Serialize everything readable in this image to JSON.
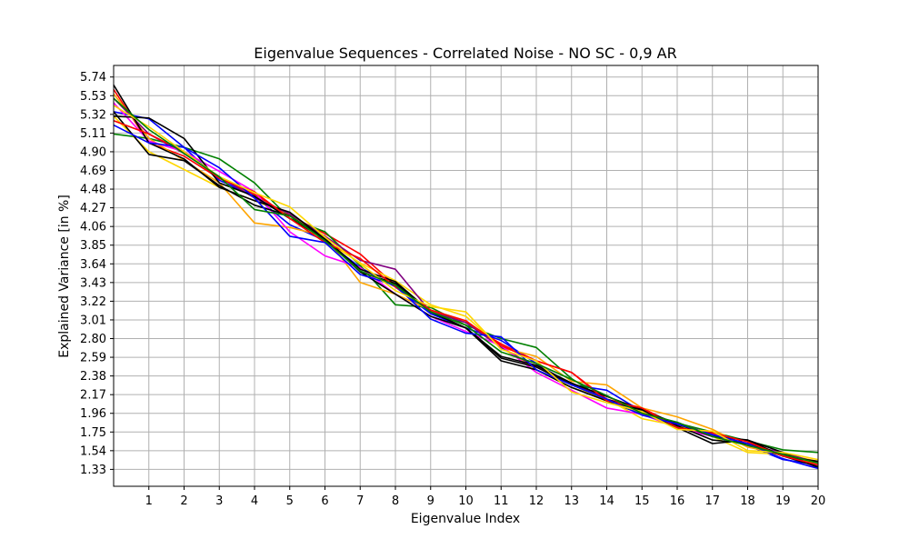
{
  "chart_data": {
    "type": "line",
    "title": "Eigenvalue Sequences - Correlated Noise - NO SC - 0,9 AR",
    "xlabel": "Eigenvalue Index",
    "ylabel": "Explained Variance [in %]",
    "xlim": [
      0,
      20
    ],
    "ylim": [
      1.14,
      5.87
    ],
    "xticks": [
      1,
      2,
      3,
      4,
      5,
      6,
      7,
      8,
      9,
      10,
      11,
      12,
      13,
      14,
      15,
      16,
      17,
      18,
      19,
      20
    ],
    "yticks": [
      5.74,
      5.53,
      5.32,
      5.11,
      4.9,
      4.69,
      4.48,
      4.27,
      4.06,
      3.85,
      3.64,
      3.43,
      3.22,
      3.01,
      2.8,
      2.59,
      2.38,
      2.17,
      1.96,
      1.75,
      1.54,
      1.33
    ],
    "ytick_labels": [
      "5.74",
      "5.53",
      "5.32",
      "5.11",
      "4.90",
      "4.69",
      "4.48",
      "4.27",
      "4.06",
      "3.85",
      "3.64",
      "3.43",
      "3.22",
      "3.01",
      "2.80",
      "2.59",
      "2.38",
      "2.17",
      "1.96",
      "1.75",
      "1.54",
      "1.33"
    ],
    "grid": true,
    "x": [
      0,
      1,
      2,
      3,
      4,
      5,
      6,
      7,
      8,
      9,
      10,
      11,
      12,
      13,
      14,
      15,
      16,
      17,
      18,
      19,
      20
    ],
    "series": [
      {
        "color": "#ff0000",
        "values": [
          5.6,
          5.0,
          4.85,
          4.6,
          4.42,
          4.18,
          3.98,
          3.75,
          3.4,
          3.12,
          2.98,
          2.74,
          2.55,
          2.42,
          2.12,
          2.02,
          1.82,
          1.72,
          1.62,
          1.48,
          1.4
        ]
      },
      {
        "color": "#0000ff",
        "values": [
          5.35,
          5.27,
          4.95,
          4.58,
          4.4,
          4.08,
          3.9,
          3.6,
          3.38,
          3.08,
          2.92,
          2.78,
          2.52,
          2.28,
          2.22,
          1.98,
          1.84,
          1.7,
          1.6,
          1.44,
          1.38
        ]
      },
      {
        "color": "#008000",
        "values": [
          5.1,
          5.05,
          4.95,
          4.82,
          4.55,
          4.15,
          4.0,
          3.62,
          3.18,
          3.15,
          2.95,
          2.8,
          2.7,
          2.35,
          2.1,
          1.95,
          1.85,
          1.75,
          1.65,
          1.55,
          1.52
        ]
      },
      {
        "color": "#ffd700",
        "values": [
          5.3,
          4.9,
          4.7,
          4.5,
          4.35,
          4.2,
          3.9,
          3.65,
          3.45,
          3.18,
          3.05,
          2.7,
          2.45,
          2.25,
          2.12,
          1.9,
          1.82,
          1.7,
          1.52,
          1.5,
          1.38
        ]
      },
      {
        "color": "#ffa500",
        "values": [
          5.55,
          5.05,
          4.8,
          4.55,
          4.1,
          4.05,
          3.95,
          3.43,
          3.3,
          3.12,
          3.0,
          2.7,
          2.6,
          2.32,
          2.28,
          2.02,
          1.92,
          1.78,
          1.58,
          1.5,
          1.42
        ]
      },
      {
        "color": "#800080",
        "values": [
          5.5,
          5.1,
          4.88,
          4.62,
          4.38,
          4.2,
          3.95,
          3.68,
          3.58,
          3.1,
          2.98,
          2.7,
          2.48,
          2.3,
          2.12,
          1.98,
          1.85,
          1.72,
          1.6,
          1.52,
          1.4
        ]
      },
      {
        "color": "#ff00ff",
        "values": [
          5.45,
          5.02,
          4.9,
          4.68,
          4.45,
          4.0,
          3.73,
          3.6,
          3.3,
          3.05,
          2.88,
          2.72,
          2.42,
          2.22,
          2.02,
          1.95,
          1.8,
          1.7,
          1.62,
          1.5,
          1.35
        ]
      },
      {
        "color": "#000000",
        "values": [
          5.65,
          5.0,
          4.82,
          4.5,
          4.35,
          4.22,
          3.92,
          3.55,
          3.3,
          3.05,
          2.92,
          2.55,
          2.45,
          2.25,
          2.1,
          2.0,
          1.84,
          1.7,
          1.66,
          1.52,
          1.35
        ]
      },
      {
        "color": "#000000",
        "values": [
          5.35,
          4.87,
          4.8,
          4.52,
          4.3,
          4.18,
          3.92,
          3.55,
          3.42,
          3.1,
          2.92,
          2.58,
          2.48,
          2.28,
          2.12,
          1.98,
          1.8,
          1.62,
          1.66,
          1.48,
          1.42
        ]
      },
      {
        "color": "#000000",
        "values": [
          5.3,
          5.28,
          5.05,
          4.55,
          4.4,
          4.15,
          3.92,
          3.58,
          3.44,
          3.1,
          2.92,
          2.6,
          2.5,
          2.3,
          2.15,
          2.0,
          1.82,
          1.66,
          1.62,
          1.48,
          1.36
        ]
      },
      {
        "color": "#ff0000",
        "values": [
          5.25,
          5.1,
          4.9,
          4.6,
          4.45,
          4.15,
          3.88,
          3.7,
          3.38,
          3.12,
          3.0,
          2.72,
          2.55,
          2.42,
          2.1,
          2.02,
          1.8,
          1.74,
          1.64,
          1.48,
          1.38
        ]
      },
      {
        "color": "#0000ff",
        "values": [
          5.2,
          5.0,
          4.95,
          4.72,
          4.38,
          3.95,
          3.88,
          3.52,
          3.4,
          3.02,
          2.86,
          2.82,
          2.45,
          2.28,
          2.12,
          1.94,
          1.84,
          1.72,
          1.62,
          1.45,
          1.34
        ]
      },
      {
        "color": "#ffd700",
        "values": [
          5.42,
          5.18,
          4.9,
          4.62,
          4.44,
          4.28,
          3.94,
          3.64,
          3.34,
          3.16,
          3.1,
          2.68,
          2.55,
          2.2,
          2.08,
          1.98,
          1.78,
          1.76,
          1.54,
          1.52,
          1.44
        ]
      },
      {
        "color": "#008000",
        "values": [
          5.5,
          5.15,
          4.88,
          4.62,
          4.25,
          4.18,
          3.9,
          3.56,
          3.4,
          3.1,
          2.95,
          2.65,
          2.52,
          2.34,
          2.16,
          1.96,
          1.86,
          1.7,
          1.6,
          1.5,
          1.4
        ]
      }
    ]
  }
}
